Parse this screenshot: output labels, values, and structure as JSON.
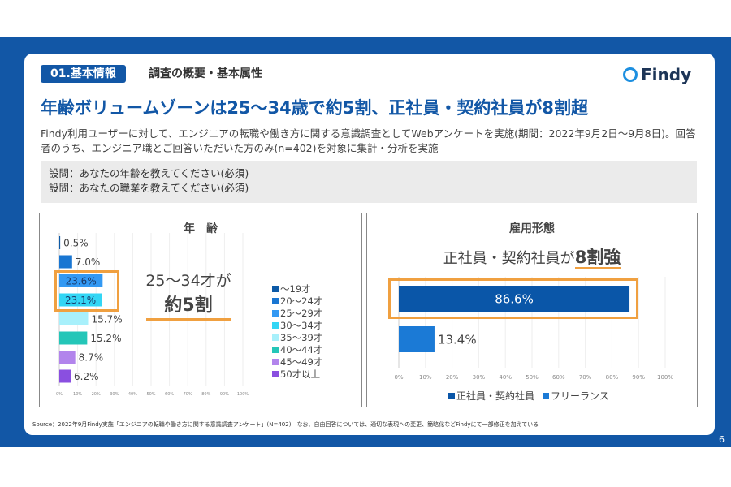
{
  "header": {
    "section_tag": "01.基本情報",
    "section_subtitle": "調査の概要・基本属性",
    "logo_text": "Findy"
  },
  "title": "年齢ボリュームゾーンは25〜34歳で約5割、正社員・契約社員が8割超",
  "description": "Findy利用ユーザーに対して、エンジニアの転職や働き方に関する意識調査としてWebアンケートを実施(期間：2022年9月2日〜9月8日)。回答者のうち、エンジニア職とご回答いただいた方のみ(n=402)を対象に集計・分析を実施",
  "questions": [
    "設問：あなたの年齢を教えてください(必須)",
    "設問：あなたの職業を教えてください(必須)"
  ],
  "age_callout": {
    "line1": "25〜34才が",
    "line2": "約5割"
  },
  "employment_callout": {
    "prefix": "正社員・契約社員が",
    "emph": "8割強"
  },
  "chart_data": [
    {
      "type": "bar",
      "orientation": "horizontal",
      "title": "年　齢",
      "categories": [
        "〜19才",
        "20〜24才",
        "25〜29才",
        "30〜34才",
        "35〜39才",
        "40〜44才",
        "45〜49才",
        "50才以上"
      ],
      "values": [
        0.5,
        7.0,
        23.6,
        23.1,
        15.7,
        15.2,
        8.7,
        6.2
      ],
      "labels": [
        "0.5%",
        "7.0%",
        "23.6%",
        "23.1%",
        "15.7%",
        "15.2%",
        "8.7%",
        "6.2%"
      ],
      "colors": [
        "#0d5aa7",
        "#1976d2",
        "#3399f3",
        "#33d6f5",
        "#a8f0fb",
        "#24c6b8",
        "#b284ec",
        "#8a4fe0"
      ],
      "xlim": [
        0,
        100
      ],
      "xticks": [
        "0%",
        "10%",
        "20%",
        "30%",
        "40%",
        "50%",
        "60%",
        "70%",
        "80%",
        "90%",
        "100%"
      ],
      "legend": "right",
      "grid": true
    },
    {
      "type": "bar",
      "orientation": "horizontal",
      "title": "雇用形態",
      "categories": [
        "正社員・契約社員",
        "フリーランス"
      ],
      "values": [
        86.6,
        13.4
      ],
      "labels": [
        "86.6%",
        "13.4%"
      ],
      "colors": [
        "#0a56a8",
        "#1b7ad6"
      ],
      "xlim": [
        0,
        100
      ],
      "xticks": [
        "0%",
        "10%",
        "20%",
        "30%",
        "40%",
        "50%",
        "60%",
        "70%",
        "80%",
        "90%",
        "100%"
      ],
      "legend": "bottom",
      "grid": true
    }
  ],
  "footer": {
    "source": "Source：2022年9月Findy実施「エンジニアの転職や働き方に関する意識調査アンケート」(N=402)　なお、自由回答については、適切な表現への変更、簡略化などFindyにて一部修正を加えている",
    "page": "6"
  }
}
